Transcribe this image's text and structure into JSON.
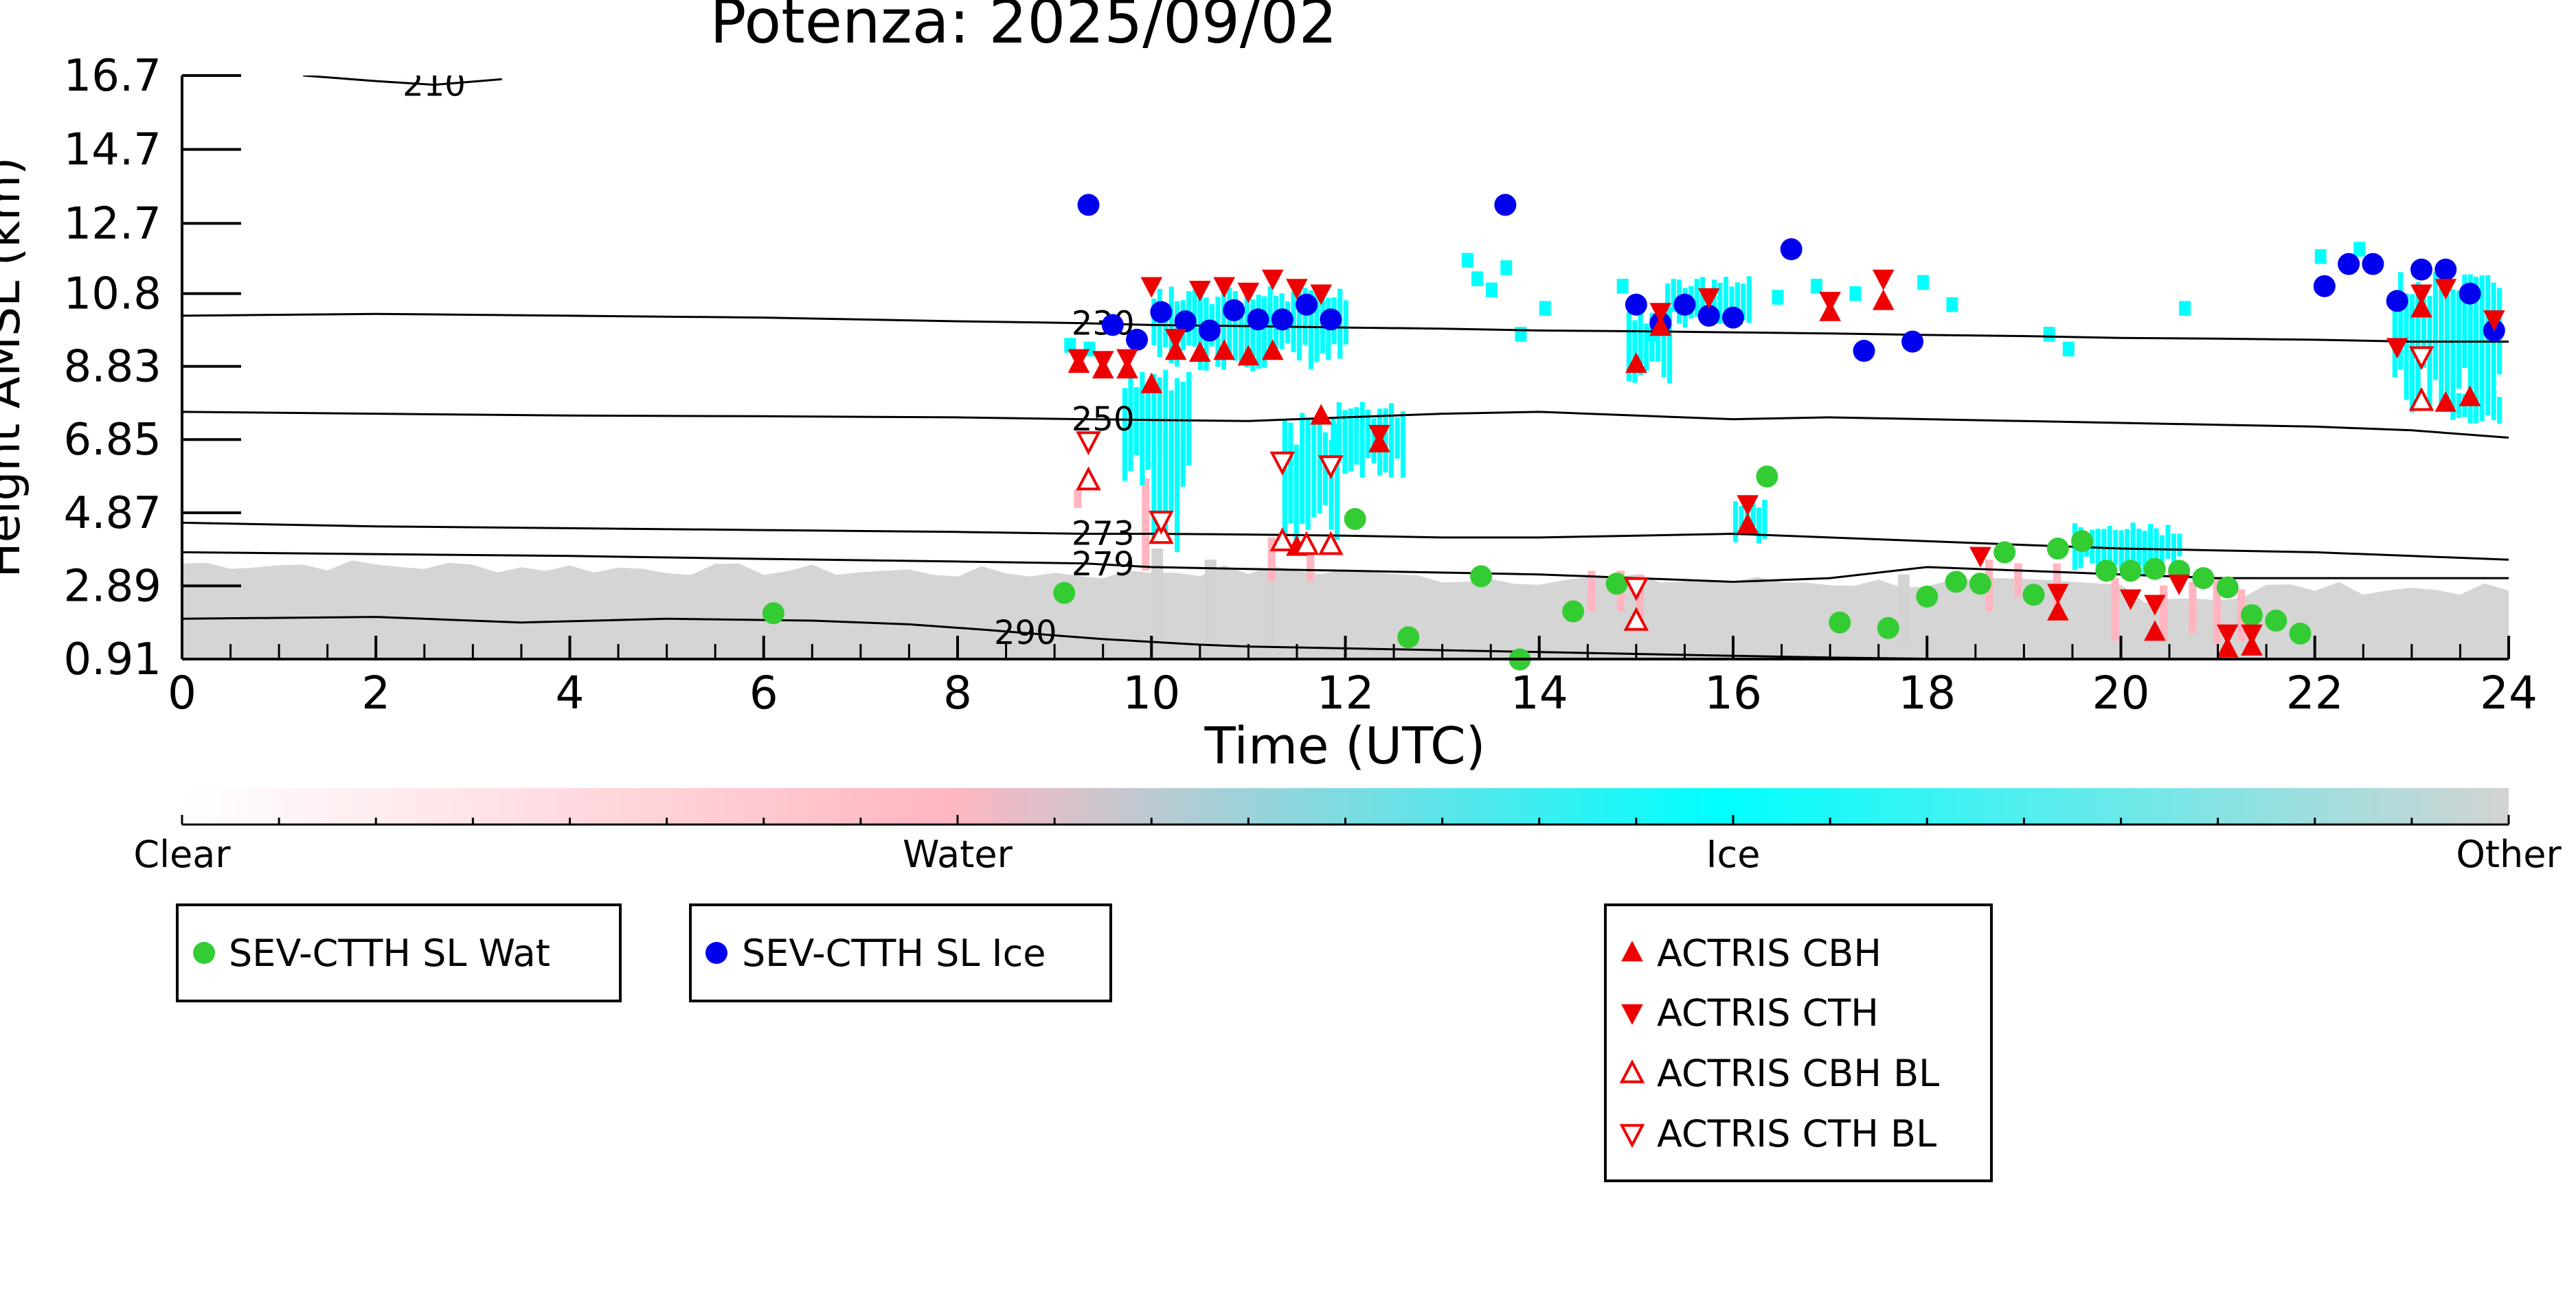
{
  "chart_data": {
    "type": "scatter",
    "title": "Potenza: 2025/09/02",
    "xlabel": "Time (UTC)",
    "ylabel": "Height AMSL (km)",
    "xlim": [
      0,
      24
    ],
    "ylim": [
      0.91,
      16.7
    ],
    "x_ticks": [
      "0",
      "2",
      "4",
      "6",
      "8",
      "10",
      "12",
      "14",
      "16",
      "18",
      "20",
      "22",
      "24"
    ],
    "y_ticks": [
      "0.91",
      "2.89",
      "4.87",
      "6.85",
      "8.83",
      "10.8",
      "12.7",
      "14.7",
      "16.7"
    ],
    "colorbar": {
      "labels": [
        "Clear",
        "Water",
        "Ice",
        "Other"
      ],
      "colors": [
        "#ffffff",
        "#ffb6c1",
        "#00ffff",
        "#d3d3d3"
      ]
    },
    "contours": [
      {
        "label": "210",
        "x": [
          1.25,
          2.0,
          2.6,
          3.3
        ],
        "y": [
          16.7,
          16.55,
          16.45,
          16.6
        ]
      },
      {
        "label": "230",
        "x": [
          0,
          2,
          4,
          6,
          8,
          9.3,
          10,
          11,
          12,
          13,
          14,
          15,
          16,
          17,
          18,
          19,
          20,
          21,
          22,
          23,
          24
        ],
        "y": [
          10.2,
          10.25,
          10.2,
          10.15,
          10.05,
          10.0,
          9.95,
          9.92,
          9.88,
          9.85,
          9.8,
          9.78,
          9.75,
          9.72,
          9.68,
          9.65,
          9.6,
          9.58,
          9.55,
          9.5,
          9.5
        ]
      },
      {
        "label": "250",
        "x": [
          0,
          2,
          4,
          6,
          8,
          9.3,
          10,
          11,
          12,
          13,
          14,
          15,
          16,
          17,
          18,
          19,
          20,
          21,
          22,
          23,
          24
        ],
        "y": [
          7.6,
          7.55,
          7.5,
          7.48,
          7.45,
          7.4,
          7.38,
          7.35,
          7.45,
          7.55,
          7.6,
          7.5,
          7.4,
          7.45,
          7.4,
          7.35,
          7.3,
          7.25,
          7.2,
          7.1,
          6.9
        ]
      },
      {
        "label": "273",
        "x": [
          0,
          2,
          4,
          6,
          8,
          9.3,
          10,
          11,
          12,
          13,
          14,
          15,
          16,
          17,
          18,
          19,
          20,
          21,
          22,
          23,
          24
        ],
        "y": [
          4.6,
          4.5,
          4.45,
          4.4,
          4.35,
          4.3,
          4.3,
          4.28,
          4.25,
          4.2,
          4.2,
          4.25,
          4.3,
          4.2,
          4.1,
          4.0,
          3.9,
          3.85,
          3.8,
          3.7,
          3.6
        ]
      },
      {
        "label": "279",
        "x": [
          0,
          2,
          4,
          6,
          8,
          9.3,
          10,
          11,
          12,
          13,
          14,
          15,
          16,
          17,
          18,
          19,
          20,
          21,
          22,
          23,
          24
        ],
        "y": [
          3.8,
          3.75,
          3.7,
          3.62,
          3.55,
          3.5,
          3.4,
          3.35,
          3.3,
          3.25,
          3.2,
          3.1,
          3.0,
          3.1,
          3.4,
          3.3,
          3.2,
          3.1,
          3.1,
          3.1,
          3.1
        ]
      },
      {
        "label": "290",
        "x": [
          0,
          2,
          3.5,
          5,
          6.5,
          7.5,
          8.3,
          9,
          9.5,
          10.5,
          11,
          12,
          13,
          14,
          15,
          16,
          17,
          18,
          19
        ],
        "y": [
          2.0,
          2.05,
          1.9,
          2.0,
          1.95,
          1.85,
          1.7,
          1.55,
          1.45,
          1.3,
          1.25,
          1.2,
          1.15,
          1.1,
          1.05,
          1.0,
          0.95,
          0.92,
          0.91
        ]
      }
    ],
    "series": [
      {
        "name": "SEV-CTTH SL Wat",
        "marker": "circle",
        "color": "#33cc33",
        "x": [
          6.1,
          9.1,
          12.1,
          12.65,
          13.4,
          13.8,
          14.35,
          14.8,
          16.35,
          17.1,
          17.6,
          18.0,
          18.3,
          18.55,
          18.8,
          19.1,
          19.35,
          19.6,
          19.85,
          20.1,
          20.35,
          20.6,
          20.85,
          21.1,
          21.35,
          21.6,
          21.85
        ],
        "y": [
          2.15,
          2.7,
          4.7,
          1.5,
          3.15,
          0.9,
          2.2,
          2.95,
          5.85,
          1.9,
          1.75,
          2.6,
          3.0,
          2.95,
          3.8,
          2.65,
          3.9,
          4.1,
          3.3,
          3.3,
          3.35,
          3.3,
          3.1,
          2.85,
          2.1,
          1.95,
          1.6
        ]
      },
      {
        "name": "SEV-CTTH SL Ice",
        "marker": "circle",
        "color": "#0000ee",
        "x": [
          9.35,
          9.6,
          9.85,
          10.1,
          10.35,
          10.6,
          10.85,
          11.1,
          11.35,
          11.6,
          11.85,
          13.65,
          15.0,
          15.25,
          15.5,
          15.75,
          16.0,
          16.6,
          17.35,
          17.85,
          22.1,
          22.35,
          22.6,
          22.85,
          23.1,
          23.35,
          23.6,
          23.85
        ],
        "y": [
          13.2,
          9.95,
          9.55,
          10.3,
          10.05,
          9.8,
          10.35,
          10.1,
          10.1,
          10.5,
          10.1,
          13.2,
          10.5,
          10.0,
          10.5,
          10.2,
          10.15,
          12.0,
          9.25,
          9.5,
          11.0,
          11.6,
          11.6,
          10.6,
          11.45,
          11.45,
          10.8,
          9.8
        ]
      },
      {
        "name": "ACTRIS CBH",
        "marker": "triangle-up",
        "color": "#ee0000",
        "x": [
          9.25,
          9.5,
          9.75,
          10.0,
          10.25,
          10.5,
          10.75,
          11.0,
          11.25,
          11.5,
          11.75,
          12.35,
          15.0,
          15.25,
          16.15,
          17.0,
          17.55,
          19.35,
          20.35,
          21.1,
          21.35,
          23.1,
          23.35,
          23.6
        ],
        "y": [
          8.9,
          8.75,
          8.75,
          8.35,
          9.25,
          9.2,
          9.25,
          9.1,
          9.25,
          3.95,
          7.5,
          6.75,
          8.9,
          9.9,
          4.55,
          10.3,
          10.6,
          2.2,
          1.65,
          1.2,
          1.25,
          10.4,
          7.85,
          8.0
        ]
      },
      {
        "name": "ACTRIS CTH",
        "marker": "triangle-down",
        "color": "#ee0000",
        "x": [
          9.25,
          9.5,
          9.75,
          10.0,
          10.25,
          10.5,
          10.75,
          11.0,
          11.25,
          11.5,
          11.75,
          12.35,
          15.25,
          15.75,
          16.15,
          17.0,
          17.55,
          18.55,
          19.35,
          20.1,
          20.35,
          20.6,
          21.1,
          21.35,
          22.85,
          23.1,
          23.35,
          23.85
        ],
        "y": [
          9.05,
          9.0,
          9.05,
          11.0,
          9.6,
          10.9,
          11.0,
          10.85,
          11.2,
          10.95,
          10.8,
          7.0,
          10.3,
          10.7,
          5.1,
          10.6,
          11.2,
          3.7,
          2.7,
          2.55,
          2.4,
          2.95,
          1.6,
          1.6,
          9.35,
          10.8,
          10.95,
          10.1
        ]
      },
      {
        "name": "ACTRIS CBH BL",
        "marker": "triangle-up-open",
        "color": "#ee0000",
        "x": [
          9.35,
          10.1,
          11.35,
          11.6,
          11.85,
          15.0,
          23.1
        ],
        "y": [
          5.75,
          4.3,
          4.1,
          4.0,
          4.0,
          1.95,
          7.9
        ]
      },
      {
        "name": "ACTRIS CTH BL",
        "marker": "triangle-down-open",
        "color": "#ee0000",
        "x": [
          9.35,
          10.1,
          11.35,
          11.85,
          15.0,
          23.1
        ],
        "y": [
          6.8,
          4.65,
          6.25,
          6.15,
          2.85,
          9.1
        ]
      }
    ]
  }
}
